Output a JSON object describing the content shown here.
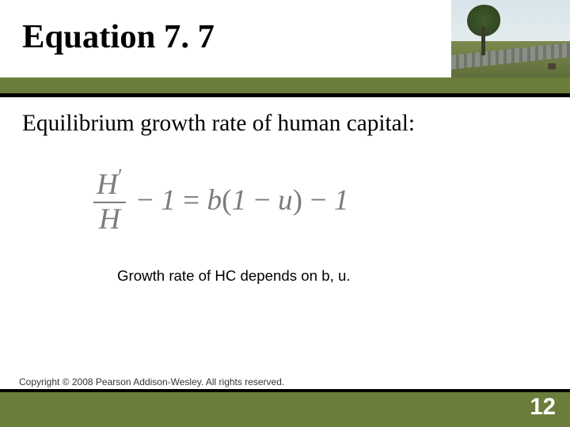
{
  "title": {
    "text": "Equation 7. 7",
    "fontsize_pt": 32
  },
  "accent_color": "#6a7d3a",
  "black_bar_color": "#000000",
  "background_color": "#ffffff",
  "lead": {
    "text": "Equilibrium growth rate of human capital:",
    "fontsize_pt": 22
  },
  "equation": {
    "color": "#7c7c7c",
    "fontsize_pt": 28,
    "frac_num": "H′",
    "frac_den": "H",
    "rhs": " − 1 = b(1 − u) − 1"
  },
  "caption": {
    "text": "Growth rate of HC depends on b, u.",
    "fontsize_pt": 14
  },
  "footer": {
    "copyright": "Copyright © 2008 Pearson Addison-Wesley. All rights reserved.",
    "copyright_fontsize_pt": 9,
    "page_number": "12",
    "page_fontsize_pt": 22
  }
}
